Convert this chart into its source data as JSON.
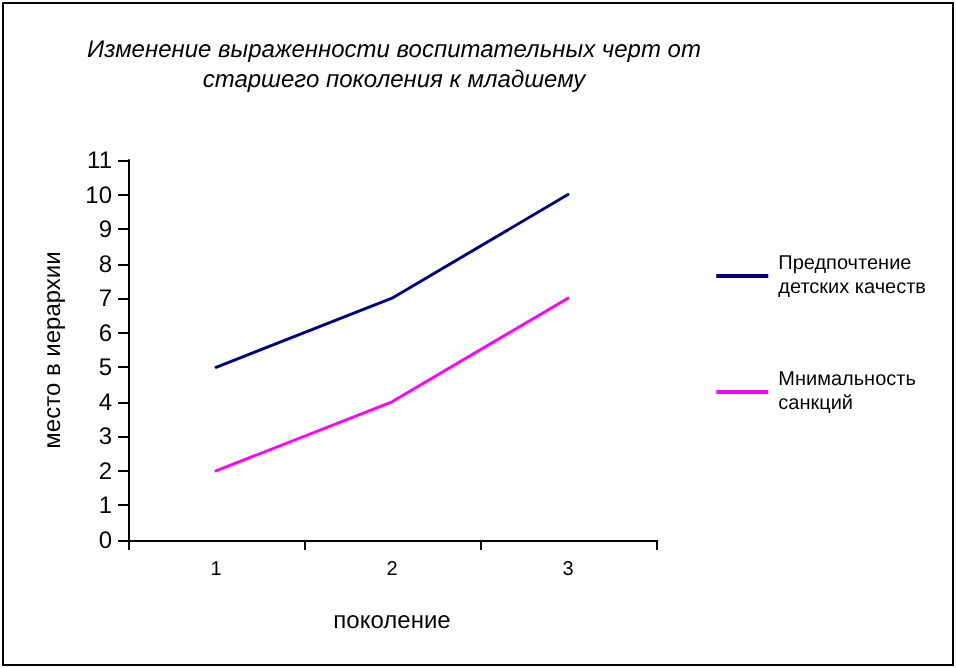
{
  "chart_data": {
    "type": "line",
    "title": "Изменение выраженности воспитательных черт от\nстаршего поколения к младшему",
    "xlabel": "поколение",
    "ylabel": "место в иерархии",
    "categories": [
      "1",
      "2",
      "3"
    ],
    "series": [
      {
        "name": "Предпочтение\nдетских качеств",
        "color": "#000080",
        "values": [
          5,
          7,
          10
        ]
      },
      {
        "name": "Мнимальность\nсанкций",
        "color": "#ff00ff",
        "values": [
          2,
          4,
          7
        ]
      }
    ],
    "ylim": [
      0,
      11
    ],
    "yticks": [
      0,
      1,
      2,
      3,
      4,
      5,
      6,
      7,
      8,
      9,
      10,
      11
    ],
    "grid": false,
    "legend": "right",
    "marker": "none",
    "line_style": "solid"
  }
}
